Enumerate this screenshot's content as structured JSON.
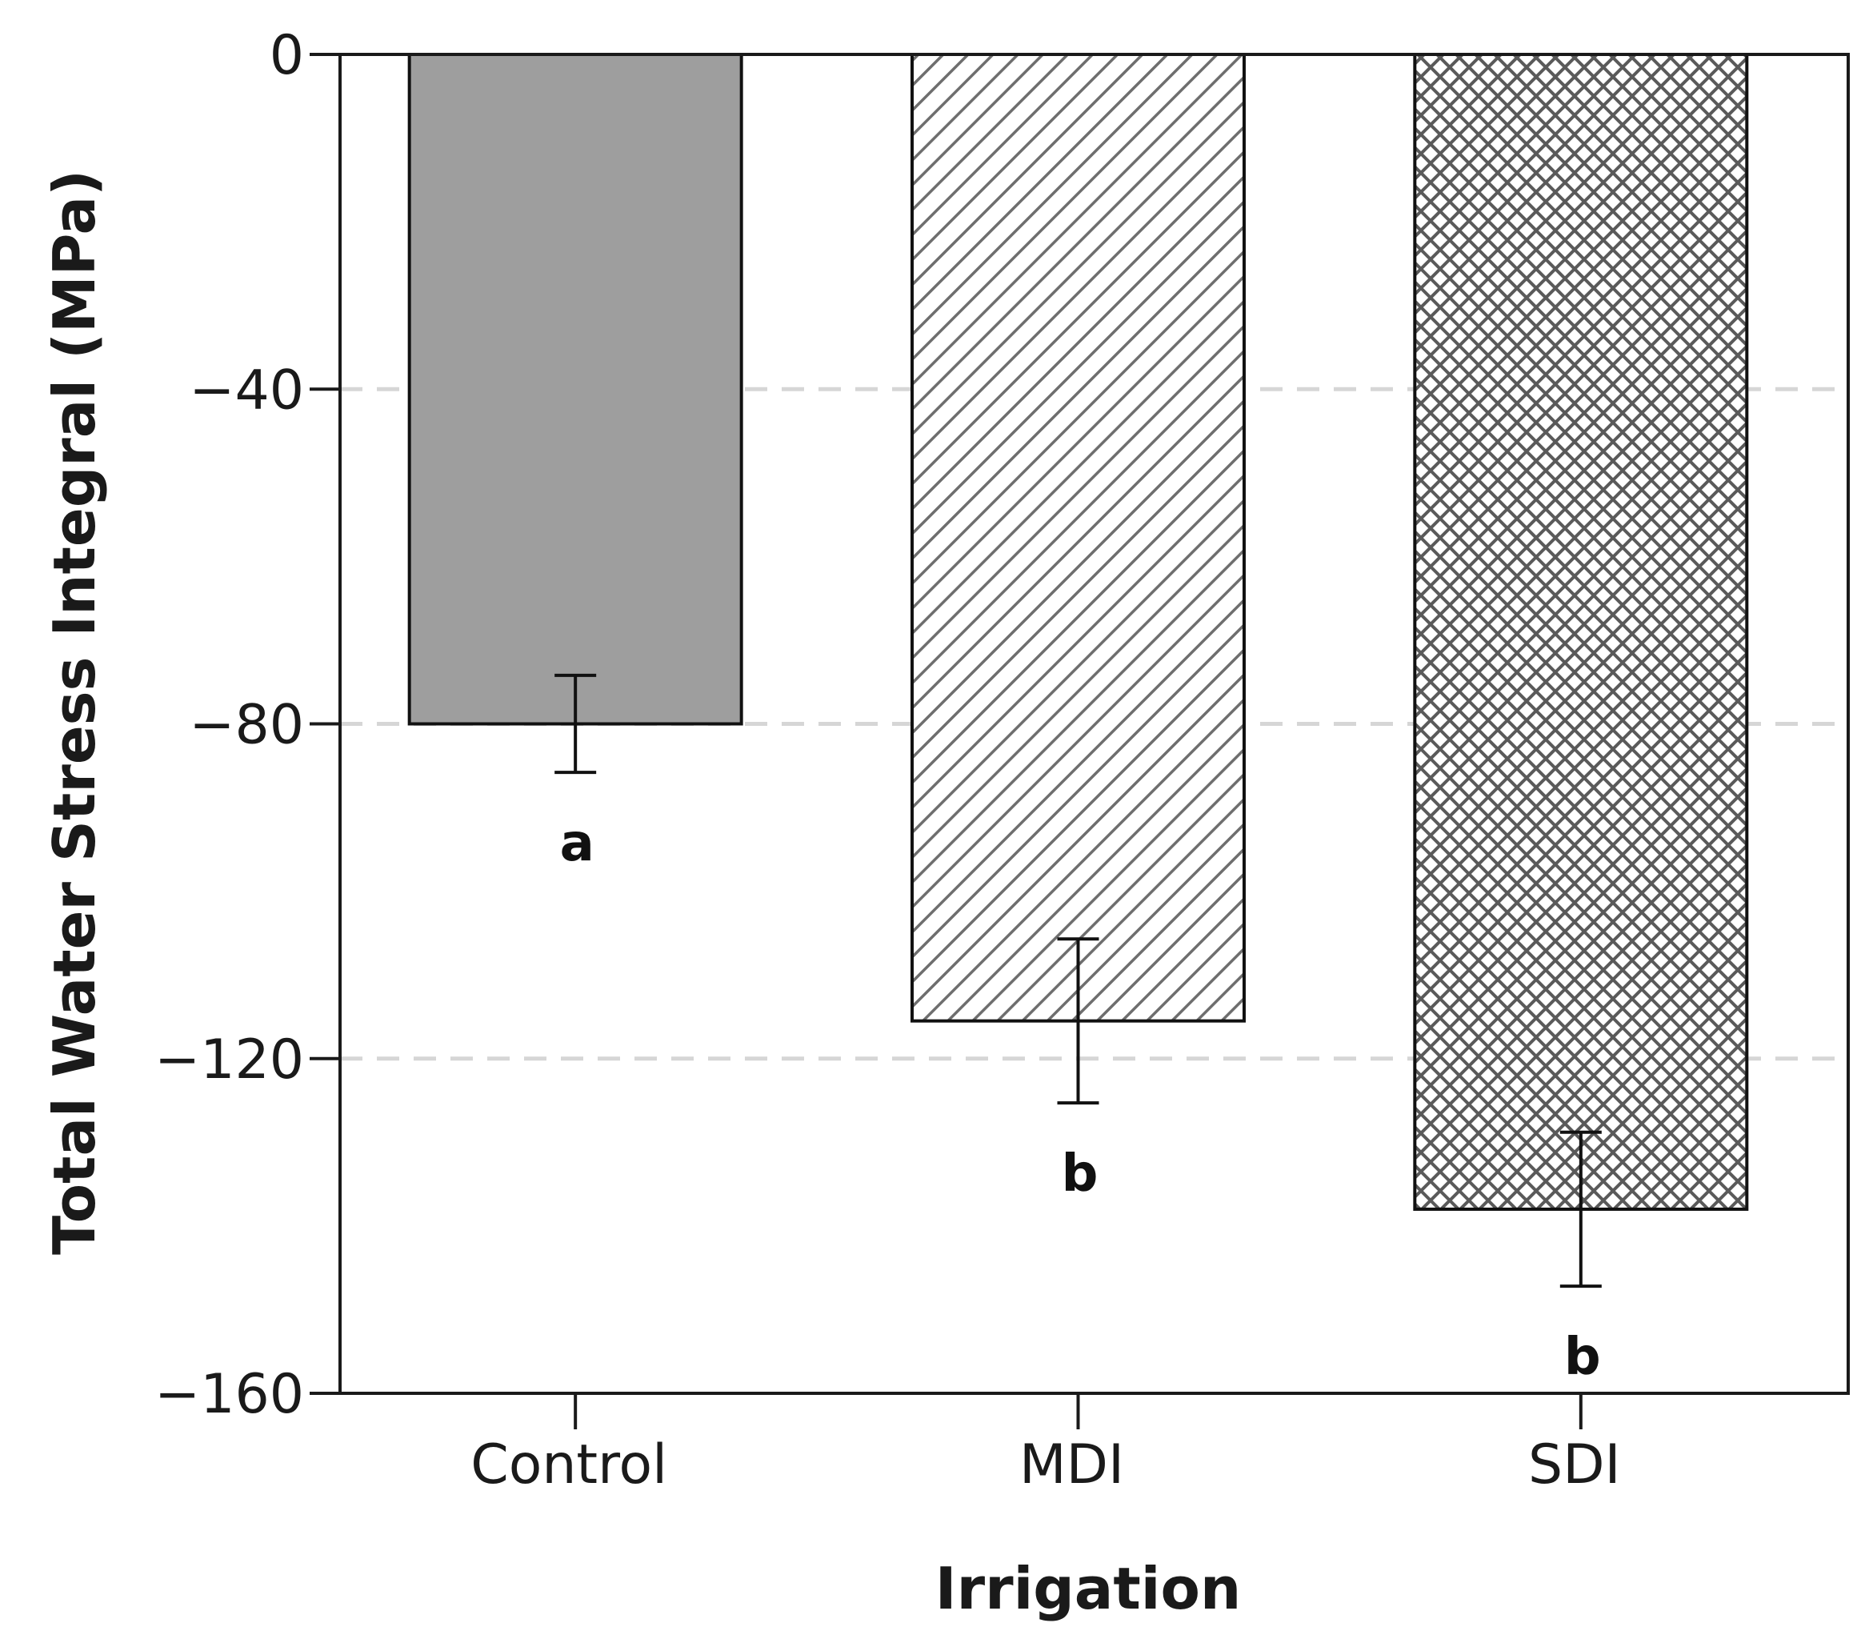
{
  "chart_data": {
    "type": "bar",
    "title": "",
    "xlabel": "Irrigation",
    "ylabel": "Total Water Stress Integral (MPa)",
    "ylim": [
      -160,
      0
    ],
    "yticks": [
      0,
      -40,
      -80,
      -120,
      -160
    ],
    "ytick_labels": [
      "0",
      "−40",
      "−80",
      "−120",
      "−160"
    ],
    "grid": "horizontal dashed",
    "categories": [
      "Control",
      "MDI",
      "SDI"
    ],
    "values": [
      -80,
      -115.5,
      -138
    ],
    "errors": [
      5.8,
      9.8,
      9.2
    ],
    "significance_letters": [
      "a",
      "b",
      "b"
    ],
    "fills": [
      "solid",
      "diagonal-hatch",
      "cross-hatch"
    ],
    "colors": {
      "bar_solid": "#9e9e9e",
      "hatch": "#6e6e6e",
      "outline": "#111111",
      "grid": "#d6d6d6"
    }
  }
}
